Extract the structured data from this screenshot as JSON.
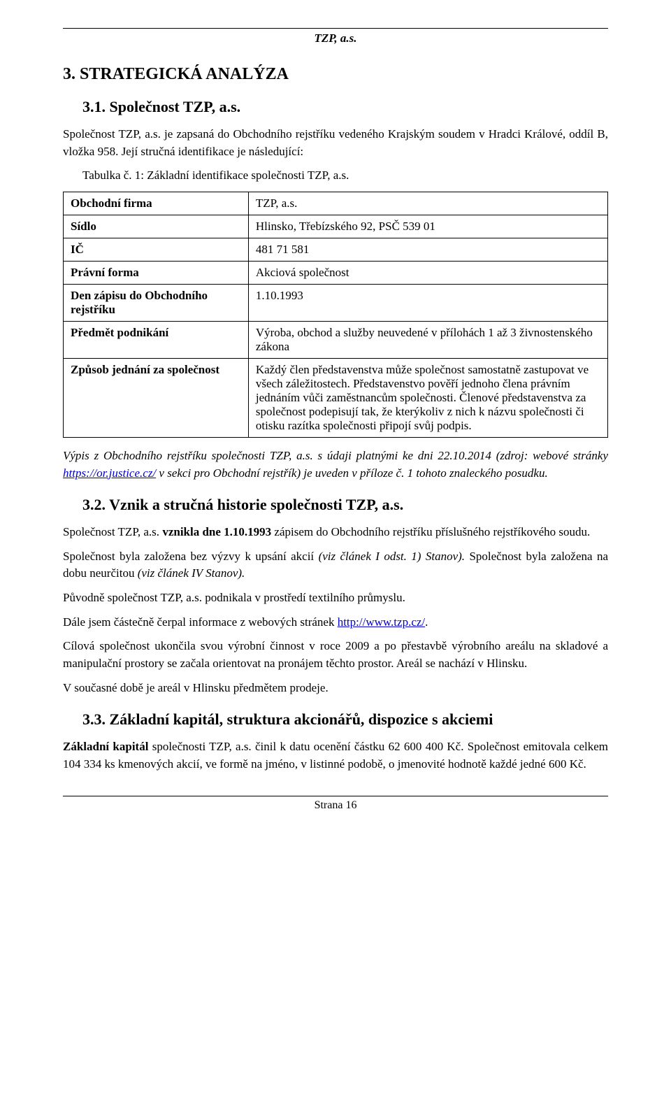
{
  "header": {
    "running_title": "TZP, a.s."
  },
  "section3": {
    "heading": "3.  STRATEGICKÁ ANALÝZA"
  },
  "section31": {
    "heading": "3.1.  Společnost TZP, a.s.",
    "para1": "Společnost TZP, a.s. je zapsaná do Obchodního rejstříku vedeného Krajským soudem v Hradci Králové, oddíl B, vložka 958. Její stručná identifikace je následující:",
    "table_caption": "Tabulka č. 1: Základní identifikace společnosti TZP, a.s.",
    "table": {
      "rows": [
        {
          "label": "Obchodní firma",
          "value": "TZP, a.s."
        },
        {
          "label": "Sídlo",
          "value": "Hlinsko, Třebízského 92, PSČ 539 01"
        },
        {
          "label": "IČ",
          "value": "481 71 581"
        },
        {
          "label": "Právní forma",
          "value": "Akciová společnost"
        },
        {
          "label": "Den zápisu do Obchodního rejstříku",
          "value": "1.10.1993"
        },
        {
          "label": "Předmět podnikání",
          "value": "Výroba, obchod a služby neuvedené v přílohách 1 až 3 živnostenského zákona"
        },
        {
          "label": "Způsob jednání za společnost",
          "value": "Každý člen představenstva může společnost samostatně zastupovat ve všech záležitostech. Představenstvo pověří jednoho člena právním jednáním vůči zaměstnancům společnosti. Členové představenstva za společnost podepisují tak, že kterýkoliv z nich k názvu společnosti či otisku razítka společnosti připojí svůj podpis."
        }
      ]
    },
    "citation_pre": "Výpis z Obchodního rejstříku společnosti TZP, a.s. s údaji platnými ke dni 22.10.2014 (zdroj: webové stránky ",
    "citation_link": "https://or.justice.cz/",
    "citation_post": " v sekci pro Obchodní rejstřík) je uveden v příloze č. 1 tohoto znaleckého posudku."
  },
  "section32": {
    "heading": "3.2.  Vznik a stručná historie společnosti TZP, a.s.",
    "p1_a": "Společnost TZP, a.s. ",
    "p1_b": "vznikla dne 1.10.1993",
    "p1_c": " zápisem do Obchodního rejstříku příslušného rejstříkového soudu.",
    "p2_a": "Společnost byla založena bez výzvy k upsání akcií ",
    "p2_i1": "(viz článek I odst. 1) Stanov).",
    "p2_b": " Společnost byla založena na dobu neurčitou ",
    "p2_i2": "(viz článek IV Stanov).",
    "p3": "Původně společnost TZP, a.s. podnikala v prostředí textilního průmyslu.",
    "p4_a": "Dále jsem částečně čerpal informace z webových stránek ",
    "p4_link": "http://www.tzp.cz/",
    "p4_b": ".",
    "p5": "Cílová společnost ukončila svou výrobní činnost v roce 2009 a po přestavbě výrobního areálu na skladové a manipulační prostory se začala orientovat na pronájem těchto prostor. Areál se nachází v Hlinsku.",
    "p6": "V současné době je areál v Hlinsku předmětem prodeje."
  },
  "section33": {
    "heading": "3.3.  Základní kapitál, struktura akcionářů, dispozice s akciemi",
    "p1_b": "Základní kapitál",
    "p1_rest": " společnosti TZP, a.s. činil k datu ocenění částku 62 600 400 Kč. Společnost emitovala celkem 104 334 ks kmenových akcií, ve formě na jméno, v listinné podobě, o jmenovité hodnotě každé jedné 600 Kč."
  },
  "footer": {
    "page": "Strana 16"
  }
}
